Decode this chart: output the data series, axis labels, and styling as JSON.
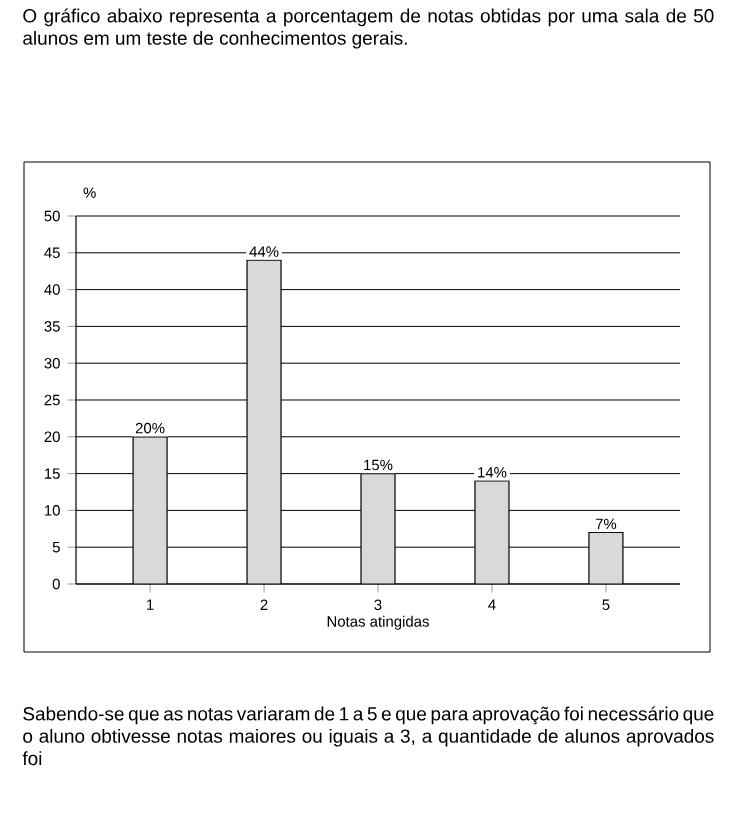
{
  "chart_data": {
    "type": "bar",
    "title": "O gráfico abaixo representa a porcentagem de notas obtidas por uma sala de 50 alunos em um teste de conhecimentos gerais.",
    "xlabel": "Notas atingidas",
    "ylabel": "%",
    "categories": [
      "1",
      "2",
      "3",
      "4",
      "5"
    ],
    "values": [
      20,
      44,
      15,
      14,
      7
    ],
    "value_labels": [
      "20%",
      "44%",
      "15%",
      "14%",
      "7%"
    ],
    "color": "#d9d9d9",
    "ylim": [
      0,
      50
    ],
    "yticks": [
      0,
      5,
      10,
      15,
      20,
      25,
      30,
      35,
      40,
      45,
      50
    ],
    "grid": "y",
    "annotations": [
      "Sabendo-se que as notas variaram de 1 a 5 e que para aprovação foi necessário que o aluno obtivesse notas maiores ou iguais a 3, a quantidade de alunos aprovados foi"
    ]
  }
}
